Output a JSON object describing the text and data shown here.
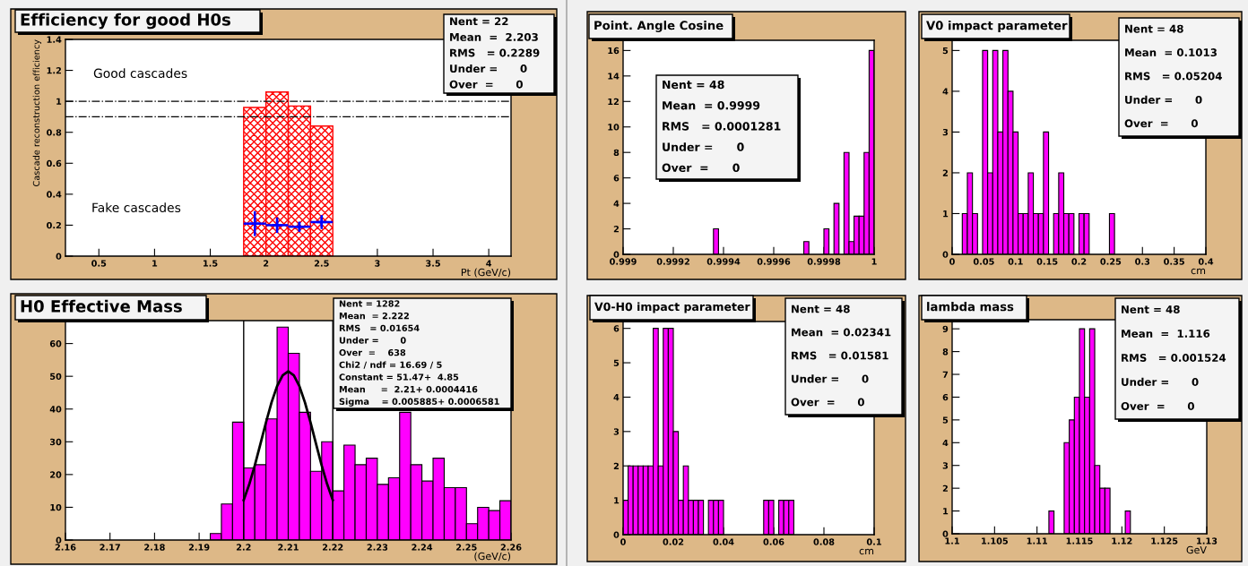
{
  "chart_data": [
    {
      "type": "histogram",
      "title": "Efficiency for good H0s",
      "xlabel": "Pt (GeV/c)",
      "ylabel": "Cascade reconstruction efficiency",
      "series": [
        {
          "type": "histogram",
          "color": "#ff0000",
          "bins": [
            1.8,
            2.0,
            2.2,
            2.4,
            2.6
          ],
          "values": [
            0.96,
            1.06,
            0.97,
            0.84
          ]
        },
        {
          "type": "scatter",
          "color": "#0000ff",
          "x": [
            1.9,
            2.1,
            2.3,
            2.5
          ],
          "values": [
            0.21,
            0.2,
            0.19,
            0.22
          ],
          "errors": [
            0.08,
            0.05,
            0.03,
            0.045
          ],
          "xerrors": [
            0.1,
            0.1,
            0.1,
            0.1
          ]
        }
      ],
      "marker": "cross",
      "xlim": [
        0.2,
        4.2
      ],
      "ylim": [
        0,
        1.4
      ],
      "xticks": [
        0.5,
        1,
        1.5,
        2,
        2.5,
        3,
        3.5,
        4
      ],
      "yticks": [
        0,
        0.2,
        0.4,
        0.6,
        0.8,
        1,
        1.2,
        1.4
      ],
      "ref_lines": [
        {
          "axis": "y",
          "value": 1,
          "color": "#000000",
          "line_style": "dashdot"
        },
        {
          "axis": "y",
          "value": 0.9,
          "color": "#000000",
          "line_style": "dashdot"
        }
      ],
      "annotations": [
        "Nent = 22\nMean  =  2.203\nRMS   = 0.2289\nUnder =      0\nOver  =      0",
        "Good cascades",
        "Fake cascades"
      ]
    },
    {
      "type": "histogram",
      "title": "H0 Effective Mass",
      "xlabel": "(GeV/c)",
      "series": [
        {
          "type": "histogram",
          "color": "#ff00ff",
          "bins": [
            2.1925,
            2.195,
            2.1975,
            2.2,
            2.2025,
            2.205,
            2.2075,
            2.21,
            2.2125,
            2.215,
            2.2175,
            2.22,
            2.2225,
            2.225,
            2.2275,
            2.23,
            2.2325,
            2.235,
            2.2375,
            2.24,
            2.2425,
            2.245,
            2.2475,
            2.25,
            2.2525,
            2.255,
            2.2575,
            2.26
          ],
          "values": [
            2,
            11,
            36,
            22,
            23,
            37,
            65,
            57,
            39,
            21,
            30,
            15,
            29,
            23,
            25,
            17,
            19,
            39,
            23,
            18,
            25,
            16,
            16,
            5,
            10,
            9,
            12
          ]
        },
        {
          "type": "line",
          "color": "#000000",
          "x": [
            2.2,
            2.20125,
            2.2025,
            2.20375,
            2.205,
            2.20625,
            2.2075,
            2.20875,
            2.21,
            2.21125,
            2.2125,
            2.21375,
            2.215,
            2.21625,
            2.2175,
            2.21875,
            2.22
          ],
          "values": [
            12.2,
            17,
            22.8,
            29.3,
            35.9,
            42,
            47,
            50.3,
            51.5,
            50.3,
            47,
            42,
            35.9,
            29.3,
            22.8,
            17,
            12.2
          ]
        }
      ],
      "marker": "none",
      "xlim": [
        2.16,
        2.26
      ],
      "ylim": [
        0,
        67
      ],
      "xticks": [
        2.16,
        2.17,
        2.18,
        2.19,
        2.2,
        2.21,
        2.22,
        2.23,
        2.24,
        2.25,
        2.26
      ],
      "yticks": [
        0,
        10,
        20,
        30,
        40,
        50,
        60
      ],
      "ref_lines": [
        {
          "axis": "x",
          "value": 2.2,
          "color": "#000000"
        },
        {
          "axis": "x",
          "value": 2.22,
          "color": "#000000"
        }
      ],
      "annotations": [
        "Nent = 1282\nMean  = 2.222\nRMS   = 0.01654\nUnder =       0\nOver  =    638\nChi2 / ndf = 16.69 / 5\nConstant = 51.47+  4.85\nMean     =  2.21+ 0.0004416\nSigma    = 0.005885+ 0.0006581"
      ]
    },
    {
      "type": "histogram",
      "title": "Point. Angle Cosine",
      "color": "#ff00ff",
      "bins": [
        0.99936,
        0.99938,
        0.9994,
        0.99942,
        0.99944,
        0.99946,
        0.99948,
        0.9995,
        0.99952,
        0.99954,
        0.99956,
        0.99958,
        0.9996,
        0.99962,
        0.99964,
        0.99966,
        0.99968,
        0.9997,
        0.99972,
        0.99974,
        0.99976,
        0.99978,
        0.9998,
        0.99982,
        0.99984,
        0.99986,
        0.99988,
        0.9999,
        0.99992,
        0.99994,
        0.99996,
        0.99998,
        1.0
      ],
      "values": [
        2,
        0,
        0,
        0,
        0,
        0,
        0,
        0,
        0,
        0,
        0,
        0,
        0,
        0,
        0,
        0,
        0,
        0,
        1,
        0,
        0,
        0,
        2,
        0,
        4,
        0,
        8,
        1,
        3,
        3,
        8,
        16
      ],
      "xlim": [
        0.999,
        1
      ],
      "ylim": [
        0,
        16.8
      ],
      "xticks": [
        0.999,
        0.9992,
        0.9994,
        0.9996,
        0.9998,
        1
      ],
      "yticks": [
        0,
        2,
        4,
        6,
        8,
        10,
        12,
        14,
        16
      ],
      "annotations": [
        "Nent = 48\nMean  = 0.9999\nRMS   = 0.0001281\nUnder =      0\nOver  =      0"
      ]
    },
    {
      "type": "histogram",
      "title": "V0 impact parameter",
      "xlabel": "cm",
      "color": "#ff00ff",
      "bins": [
        0.016,
        0.024,
        0.032,
        0.04,
        0.048,
        0.056,
        0.064,
        0.072,
        0.08,
        0.088,
        0.096,
        0.104,
        0.112,
        0.12,
        0.128,
        0.136,
        0.144,
        0.152,
        0.16,
        0.168,
        0.176,
        0.184,
        0.192,
        0.2,
        0.208,
        0.216,
        0.224,
        0.232,
        0.24,
        0.248,
        0.256
      ],
      "values": [
        1,
        2,
        1,
        0,
        5,
        2,
        5,
        3,
        5,
        4,
        3,
        1,
        1,
        2,
        1,
        1,
        3,
        0,
        1,
        2,
        1,
        1,
        0,
        1,
        1,
        0,
        0,
        0,
        0,
        1
      ],
      "xlim": [
        0,
        0.4
      ],
      "ylim": [
        0,
        5.25
      ],
      "xticks": [
        0,
        0.05,
        0.1,
        0.15,
        0.2,
        0.25,
        0.3,
        0.35,
        0.4
      ],
      "yticks": [
        0,
        1,
        2,
        3,
        4,
        5
      ],
      "annotations": [
        "Nent = 48\nMean  = 0.1013\nRMS   = 0.05204\nUnder =      0\nOver  =      0"
      ]
    },
    {
      "type": "histogram",
      "title": "V0-H0 impact parameter",
      "xlabel": "cm",
      "color": "#ff00ff",
      "bins": [
        0,
        0.002,
        0.004,
        0.006,
        0.008,
        0.01,
        0.012,
        0.014,
        0.016,
        0.018,
        0.02,
        0.022,
        0.024,
        0.026,
        0.028,
        0.03,
        0.032,
        0.034,
        0.036,
        0.038,
        0.04,
        0.042,
        0.044,
        0.046,
        0.048,
        0.05,
        0.052,
        0.054,
        0.056,
        0.058,
        0.06,
        0.062,
        0.064,
        0.066,
        0.068
      ],
      "values": [
        1,
        2,
        2,
        2,
        2,
        2,
        6,
        2,
        6,
        6,
        3,
        1,
        2,
        1,
        1,
        1,
        0,
        1,
        1,
        1,
        0,
        0,
        0,
        0,
        0,
        0,
        0,
        0,
        1,
        1,
        0,
        1,
        1,
        1
      ],
      "xlim": [
        0,
        0.1
      ],
      "ylim": [
        0,
        6.2
      ],
      "xticks": [
        0,
        0.02,
        0.04,
        0.06,
        0.08,
        0.1
      ],
      "yticks": [
        0,
        1,
        2,
        3,
        4,
        5,
        6
      ],
      "annotations": [
        "Nent = 48\nMean  = 0.02341\nRMS   = 0.01581\nUnder =      0\nOver  =      0"
      ]
    },
    {
      "type": "histogram",
      "title": "lambda mass",
      "xlabel": "GeV",
      "color": "#ff00ff",
      "bins": [
        1.1114,
        1.112,
        1.1126,
        1.1132,
        1.1138,
        1.1144,
        1.115,
        1.1156,
        1.1162,
        1.1168,
        1.1174,
        1.118,
        1.1186,
        1.1192,
        1.1198,
        1.1204,
        1.121
      ],
      "values": [
        1,
        0,
        0,
        4,
        5,
        6,
        9,
        6,
        9,
        3,
        2,
        2,
        0,
        0,
        0,
        1
      ],
      "xlim": [
        1.1,
        1.13
      ],
      "ylim": [
        0,
        9.4
      ],
      "xticks": [
        1.1,
        1.105,
        1.11,
        1.115,
        1.12,
        1.125,
        1.13
      ],
      "yticks": [
        0,
        1,
        2,
        3,
        4,
        5,
        6,
        7,
        8,
        9
      ],
      "annotations": [
        "Nent = 48\nMean  =  1.116\nRMS   = 0.001524\nUnder =      0\nOver  =      0"
      ]
    }
  ]
}
